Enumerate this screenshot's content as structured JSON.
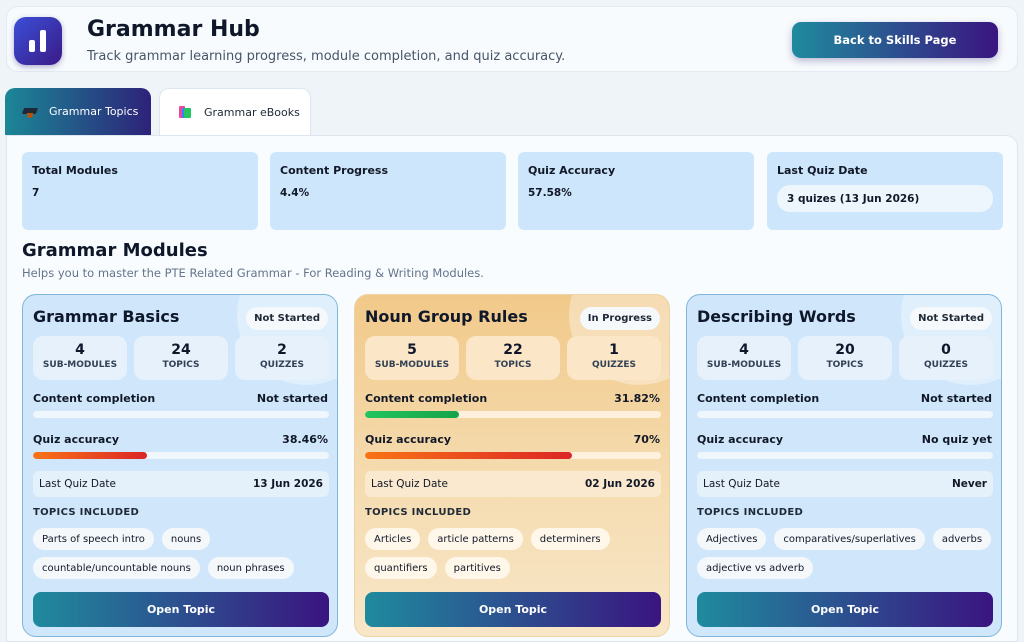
{
  "header": {
    "title": "Grammar Hub",
    "subtitle": "Track grammar learning progress, module completion, and quiz accuracy.",
    "back_label": "Back to Skills Page"
  },
  "tabs": [
    {
      "label": "Grammar Topics",
      "icon": "graduation-cap-icon",
      "active": true
    },
    {
      "label": "Grammar eBooks",
      "icon": "books-icon",
      "active": false
    }
  ],
  "stats": [
    {
      "label": "Total Modules",
      "value": "7"
    },
    {
      "label": "Content Progress",
      "value": "4.4%"
    },
    {
      "label": "Quiz Accuracy",
      "value": "57.58%"
    },
    {
      "label": "Last Quiz Date",
      "value": "3 quizes (13 Jun 2026)"
    }
  ],
  "modules_section": {
    "title": "Grammar Modules",
    "subtitle": "Helps you to master the PTE Related Grammar - For Reading & Writing Modules."
  },
  "labels": {
    "content_completion": "Content completion",
    "quiz_accuracy": "Quiz accuracy",
    "last_quiz_date": "Last Quiz Date",
    "topics_included": "TOPICS INCLUDED",
    "sub_modules": "SUB-MODULES",
    "topics": "TOPICS",
    "quizzes": "QUIZZES",
    "open_topic": "Open Topic"
  },
  "modules": [
    {
      "title": "Grammar Basics",
      "status": "Not Started",
      "sub_modules": "4",
      "topics": "24",
      "quizzes": "2",
      "content_completion_text": "Not started",
      "content_completion_pct": 0,
      "quiz_accuracy_text": "38.46%",
      "quiz_accuracy_pct": 38.46,
      "last_quiz_date": "13 Jun 2026",
      "chips": [
        "Parts of speech intro",
        "nouns",
        "countable/uncountable nouns",
        "noun phrases"
      ]
    },
    {
      "title": "Noun Group Rules",
      "status": "In Progress",
      "sub_modules": "5",
      "topics": "22",
      "quizzes": "1",
      "content_completion_text": "31.82%",
      "content_completion_pct": 31.82,
      "quiz_accuracy_text": "70%",
      "quiz_accuracy_pct": 70,
      "last_quiz_date": "02 Jun 2026",
      "chips": [
        "Articles",
        "article patterns",
        "determiners",
        "quantifiers",
        "partitives"
      ]
    },
    {
      "title": "Describing Words",
      "status": "Not Started",
      "sub_modules": "4",
      "topics": "20",
      "quizzes": "0",
      "content_completion_text": "Not started",
      "content_completion_pct": 0,
      "quiz_accuracy_text": "No quiz yet",
      "quiz_accuracy_pct": 0,
      "last_quiz_date": "Never",
      "chips": [
        "Adjectives",
        "comparatives/superlatives",
        "adverbs",
        "adjective vs adverb"
      ]
    }
  ]
}
